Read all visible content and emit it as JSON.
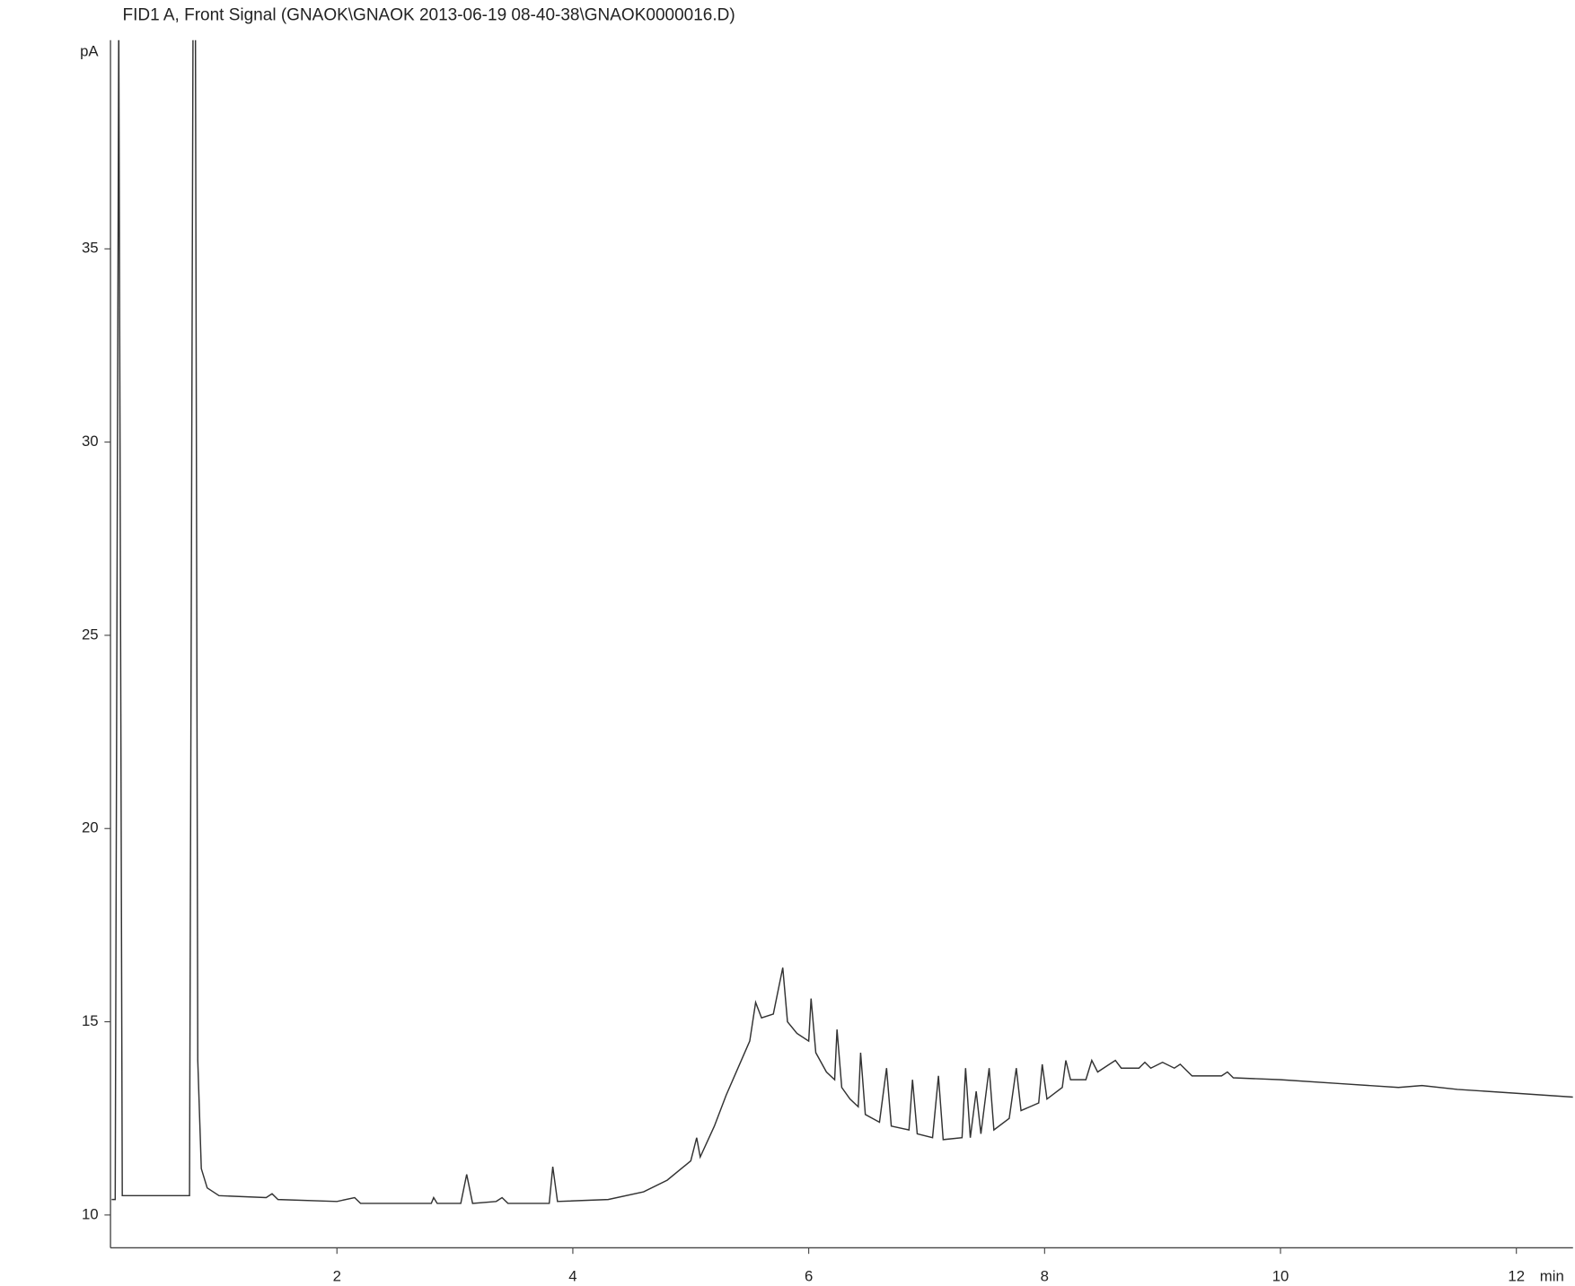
{
  "chart_data": {
    "type": "line",
    "title": "FID1 A, Front Signal (GNAOK\\GNAOK 2013-06-19 08-40-38\\GNAOK0000016.D)",
    "x_label": "min",
    "y_label": "pA",
    "color": "#333333",
    "xlim": [
      0.08,
      12.48
    ],
    "ylim": [
      9.15,
      40.4
    ],
    "xticks": [
      2,
      4,
      6,
      8,
      10,
      12
    ],
    "yticks": [
      10,
      15,
      20,
      25,
      30,
      35
    ],
    "x": [
      0.09,
      0.12,
      0.15,
      0.18,
      0.75,
      0.78,
      0.8,
      0.82,
      0.85,
      0.9,
      1.0,
      1.4,
      1.45,
      1.5,
      2.0,
      2.15,
      2.2,
      2.8,
      2.82,
      2.85,
      3.05,
      3.1,
      3.15,
      3.35,
      3.4,
      3.45,
      3.8,
      3.83,
      3.87,
      4.3,
      4.6,
      4.8,
      5.0,
      5.05,
      5.08,
      5.2,
      5.3,
      5.4,
      5.5,
      5.55,
      5.6,
      5.7,
      5.78,
      5.82,
      5.9,
      6.0,
      6.02,
      6.06,
      6.15,
      6.22,
      6.24,
      6.28,
      6.35,
      6.42,
      6.44,
      6.48,
      6.6,
      6.66,
      6.7,
      6.85,
      6.88,
      6.92,
      7.05,
      7.1,
      7.14,
      7.3,
      7.33,
      7.37,
      7.42,
      7.46,
      7.53,
      7.57,
      7.7,
      7.76,
      7.8,
      7.95,
      7.98,
      8.02,
      8.15,
      8.18,
      8.22,
      8.35,
      8.4,
      8.45,
      8.55,
      8.6,
      8.65,
      8.8,
      8.85,
      8.9,
      9.0,
      9.1,
      9.15,
      9.25,
      9.5,
      9.55,
      9.6,
      10.0,
      10.5,
      11.0,
      11.2,
      11.5,
      12.0,
      12.48
    ],
    "values": [
      10.4,
      10.4,
      41,
      10.5,
      10.5,
      41,
      41,
      14,
      11.2,
      10.7,
      10.5,
      10.45,
      10.55,
      10.4,
      10.35,
      10.45,
      10.3,
      10.3,
      10.45,
      10.3,
      10.3,
      11.05,
      10.3,
      10.35,
      10.45,
      10.3,
      10.3,
      11.25,
      10.35,
      10.4,
      10.6,
      10.9,
      11.4,
      12.0,
      11.5,
      12.3,
      13.1,
      13.8,
      14.5,
      15.5,
      15.1,
      15.2,
      16.4,
      15.0,
      14.7,
      14.5,
      15.6,
      14.2,
      13.7,
      13.5,
      14.8,
      13.3,
      13.0,
      12.8,
      14.2,
      12.6,
      12.4,
      13.8,
      12.3,
      12.2,
      13.5,
      12.1,
      12.0,
      13.6,
      11.95,
      12.0,
      13.8,
      12.0,
      13.2,
      12.1,
      13.8,
      12.2,
      12.5,
      13.8,
      12.7,
      12.9,
      13.9,
      13.0,
      13.3,
      14.0,
      13.5,
      13.5,
      14.0,
      13.7,
      13.9,
      14.0,
      13.8,
      13.8,
      13.95,
      13.8,
      13.95,
      13.8,
      13.9,
      13.6,
      13.6,
      13.7,
      13.55,
      13.5,
      13.4,
      13.3,
      13.35,
      13.25,
      13.15,
      13.05
    ]
  }
}
